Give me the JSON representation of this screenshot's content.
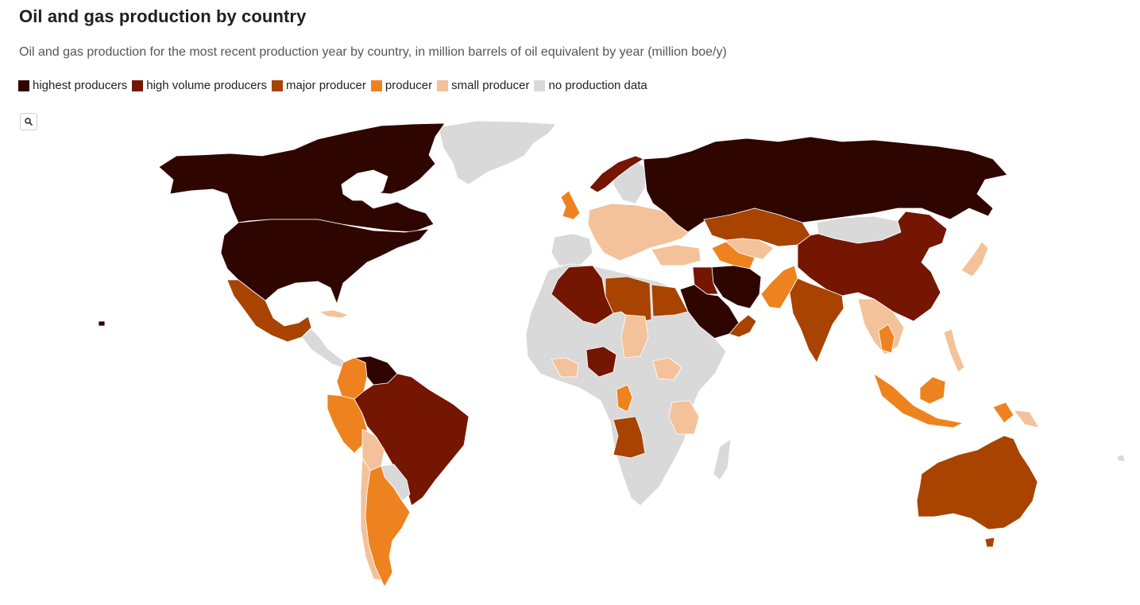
{
  "header": {
    "title": "Oil and gas production by country",
    "subtitle": "Oil and gas production for the most recent production year by country, in million barrels of oil equivalent by year (million boe/y)"
  },
  "legend": [
    {
      "label": "highest producers",
      "color": "#2f0500"
    },
    {
      "label": "high volume producers",
      "color": "#741601"
    },
    {
      "label": "major producer",
      "color": "#a84300"
    },
    {
      "label": "producer",
      "color": "#ee821f"
    },
    {
      "label": "small producer",
      "color": "#f3c29a"
    },
    {
      "label": "no production data",
      "color": "#d9d9d9"
    }
  ],
  "controls": {
    "zoom_icon": "search-icon"
  },
  "regions": [
    {
      "name": "north-america",
      "category": "highest producers"
    },
    {
      "name": "canada",
      "category": "highest producers"
    },
    {
      "name": "united-states",
      "category": "highest producers"
    },
    {
      "name": "greenland",
      "category": "no production data"
    },
    {
      "name": "mexico",
      "category": "major producer"
    },
    {
      "name": "central-america",
      "category": "no production data"
    },
    {
      "name": "cuba",
      "category": "small producer"
    },
    {
      "name": "venezuela",
      "category": "highest producers"
    },
    {
      "name": "brazil",
      "category": "high volume producers"
    },
    {
      "name": "colombia",
      "category": "producer"
    },
    {
      "name": "peru",
      "category": "producer"
    },
    {
      "name": "bolivia",
      "category": "small producer"
    },
    {
      "name": "argentina",
      "category": "producer"
    },
    {
      "name": "chile",
      "category": "small producer"
    },
    {
      "name": "paraguay",
      "category": "no production data"
    },
    {
      "name": "uruguay",
      "category": "no production data"
    },
    {
      "name": "norway",
      "category": "high volume producers"
    },
    {
      "name": "united-kingdom",
      "category": "producer"
    },
    {
      "name": "europe",
      "category": "small producer"
    },
    {
      "name": "russia",
      "category": "highest producers"
    },
    {
      "name": "kazakhstan",
      "category": "major producer"
    },
    {
      "name": "turkmenistan",
      "category": "producer"
    },
    {
      "name": "uzbekistan",
      "category": "small producer"
    },
    {
      "name": "mongolia",
      "category": "no production data"
    },
    {
      "name": "china",
      "category": "high volume producers"
    },
    {
      "name": "iran",
      "category": "highest producers"
    },
    {
      "name": "iraq",
      "category": "high volume producers"
    },
    {
      "name": "saudi-arabia",
      "category": "highest producers"
    },
    {
      "name": "oman",
      "category": "major producer"
    },
    {
      "name": "india",
      "category": "major producer"
    },
    {
      "name": "pakistan",
      "category": "producer"
    },
    {
      "name": "japan",
      "category": "small producer"
    },
    {
      "name": "algeria",
      "category": "high volume producers"
    },
    {
      "name": "libya",
      "category": "major producer"
    },
    {
      "name": "egypt",
      "category": "major producer"
    },
    {
      "name": "nigeria",
      "category": "high volume producers"
    },
    {
      "name": "angola",
      "category": "major producer"
    },
    {
      "name": "africa-other",
      "category": "no production data"
    },
    {
      "name": "indonesia",
      "category": "producer"
    },
    {
      "name": "malaysia",
      "category": "producer"
    },
    {
      "name": "australia",
      "category": "major producer"
    },
    {
      "name": "madagascar",
      "category": "no production data"
    }
  ]
}
